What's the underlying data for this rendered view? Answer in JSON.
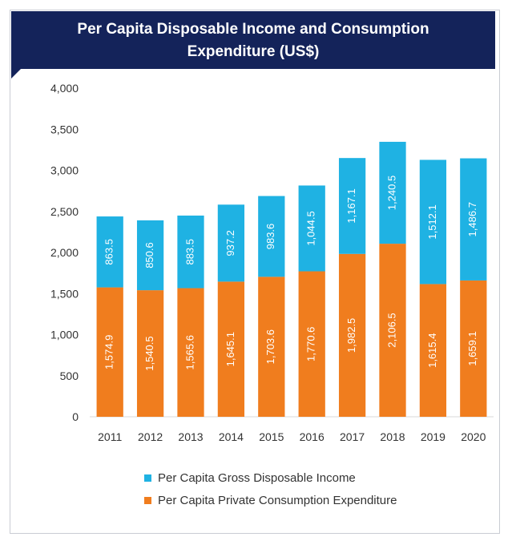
{
  "chart_data": {
    "type": "bar",
    "stacked": true,
    "title": "Per Capita Disposable Income and Consumption Expenditure (US$)",
    "title_lines": [
      "Per Capita Disposable Income and Consumption",
      "Expenditure (US$)"
    ],
    "categories": [
      "2011",
      "2012",
      "2013",
      "2014",
      "2015",
      "2016",
      "2017",
      "2018",
      "2019",
      "2020"
    ],
    "series": [
      {
        "name": "Per Capita Private Consumption Expenditure",
        "color": "#f07d1e",
        "values": [
          1574.9,
          1540.5,
          1565.6,
          1645.1,
          1703.6,
          1770.6,
          1982.5,
          2106.5,
          1615.4,
          1659.1
        ],
        "labels": [
          "1,574.9",
          "1,540.5",
          "1,565.6",
          "1,645.1",
          "1,703.6",
          "1,770.6",
          "1,982.5",
          "2,106.5",
          "1,615.4",
          "1,659.1"
        ]
      },
      {
        "name": "Per Capita Gross Disposable Income",
        "color": "#1fb2e3",
        "values": [
          863.5,
          850.6,
          883.5,
          937.2,
          983.6,
          1044.5,
          1167.1,
          1240.5,
          1512.1,
          1486.7
        ],
        "labels": [
          "863.5",
          "850.6",
          "883.5",
          "937.2",
          "983.6",
          "1,044.5",
          "1,167.1",
          "1,240.5",
          "1,512.1",
          "1,486.7"
        ]
      }
    ],
    "legend_order": [
      1,
      0
    ],
    "y_ticks": [
      "0",
      "500",
      "1,000",
      "1,500",
      "2,000",
      "2,500",
      "3,000",
      "3,500",
      "4,000"
    ],
    "ylim": [
      0,
      4000
    ],
    "grid": false,
    "legend_position": "bottom"
  }
}
